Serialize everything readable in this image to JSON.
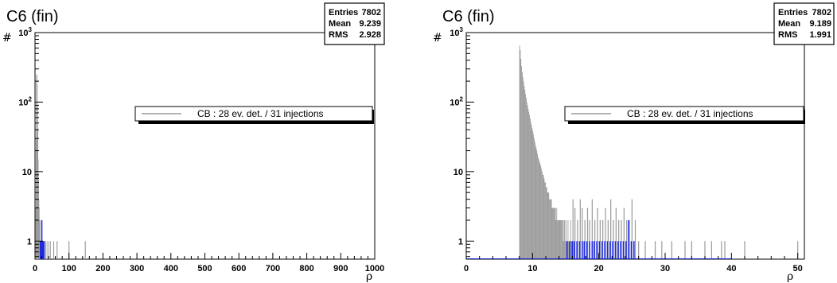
{
  "chart_data": [
    {
      "type": "histogram",
      "title": "C6 (fin)",
      "xlabel": "ρ",
      "ylabel": "#",
      "xlim": [
        0,
        1000
      ],
      "ylim": [
        0.55,
        1000
      ],
      "yscale": "log",
      "x_ticks": [
        0,
        100,
        200,
        300,
        400,
        500,
        600,
        700,
        800,
        900,
        1000
      ],
      "y_ticks": [
        1,
        10,
        100,
        1000
      ],
      "y_tick_labels": [
        "1",
        "10",
        "10^2",
        "10^3"
      ],
      "stats": [
        {
          "key": "Entries",
          "value": "7802"
        },
        {
          "key": "Mean",
          "value": "9.239"
        },
        {
          "key": "RMS",
          "value": "2.928"
        }
      ],
      "legend": "CB : 28 ev. det. / 31 injections",
      "colors": {
        "grey": "#9a9a9a",
        "blue": "#1f2be0"
      },
      "series_grey": {
        "x": [
          3,
          4,
          5,
          6,
          7,
          8,
          9,
          10,
          11,
          12,
          13,
          14,
          15,
          16,
          18,
          20,
          22,
          25,
          28,
          32,
          38,
          45,
          55,
          65,
          100,
          148
        ],
        "y": [
          3,
          30,
          250,
          180,
          90,
          40,
          15,
          8,
          4,
          3,
          2,
          2,
          1,
          1,
          1,
          1,
          1,
          1,
          1,
          1,
          1,
          1,
          1,
          1,
          1,
          1
        ]
      },
      "series_blue": {
        "x": [
          16,
          18,
          20,
          22,
          24,
          26
        ],
        "y": [
          1,
          1,
          2,
          1,
          1,
          1
        ]
      }
    },
    {
      "type": "histogram",
      "title": "C6 (fin)",
      "xlabel": "ρ",
      "ylabel": "#",
      "xlim": [
        0,
        51
      ],
      "ylim": [
        0.55,
        1000
      ],
      "yscale": "log",
      "x_ticks": [
        0,
        10,
        20,
        30,
        40,
        50
      ],
      "y_ticks": [
        1,
        10,
        100,
        1000
      ],
      "y_tick_labels": [
        "1",
        "10",
        "10^2",
        "10^3"
      ],
      "stats": [
        {
          "key": "Entries",
          "value": "7802"
        },
        {
          "key": "Mean",
          "value": "9.189"
        },
        {
          "key": "RMS",
          "value": "1.991"
        }
      ],
      "legend": "CB : 28 ev. det. / 31 injections",
      "colors": {
        "grey": "#9a9a9a",
        "blue": "#1f2be0"
      },
      "grey_bins": {
        "x_start": 8.0,
        "width": 0.1,
        "heights": [
          650,
          560,
          420,
          330,
          270,
          230,
          200,
          170,
          150,
          130,
          115,
          100,
          90,
          80,
          72,
          65,
          58,
          52,
          47,
          42,
          38,
          34,
          30,
          27,
          24,
          22,
          20,
          18,
          16,
          15,
          14,
          13,
          12,
          11,
          10,
          9,
          9,
          8,
          7,
          7,
          6,
          6,
          5,
          5,
          5,
          4,
          4,
          4,
          4,
          3,
          3,
          3,
          3,
          3,
          3,
          2,
          3,
          2,
          2,
          2,
          2,
          2,
          2,
          2,
          2,
          2,
          1,
          2,
          2,
          1,
          2,
          1,
          1,
          2,
          1,
          1,
          1,
          2,
          1,
          1
        ]
      },
      "series_grey": {
        "x": [
          16.1,
          16.4,
          16.8,
          17.2,
          17.5,
          17.9,
          18.3,
          18.6,
          19.0,
          19.4,
          19.8,
          20.2,
          20.6,
          21.0,
          21.4,
          21.8,
          22.2,
          22.6,
          23.0,
          23.4,
          23.8,
          24.2,
          24.6,
          25.0,
          25.5,
          26.0,
          27.0,
          28.5,
          29.5,
          31.0,
          33.0,
          34.0,
          36.0,
          37.0,
          38.5,
          39.0,
          42.0,
          50.0
        ],
        "y": [
          4,
          3,
          2,
          4,
          3,
          2,
          3,
          2,
          4,
          2,
          3,
          2,
          2,
          3,
          2,
          4,
          2,
          3,
          2,
          2,
          3,
          2,
          2,
          4,
          2,
          1,
          1,
          1,
          1,
          1,
          1,
          1,
          1,
          1,
          1,
          1,
          1,
          1
        ]
      },
      "series_blue": {
        "x": [
          15.2,
          15.6,
          16.0,
          16.3,
          16.7,
          17.1,
          17.5,
          17.8,
          18.2,
          18.6,
          19.0,
          19.3,
          19.7,
          20.1,
          20.5,
          20.9,
          21.3,
          21.7,
          22.1,
          22.5,
          22.9,
          23.3,
          23.7,
          24.1,
          24.5,
          24.9,
          25.3
        ],
        "y": [
          1,
          1,
          1,
          1,
          1,
          1,
          1,
          1,
          1,
          1,
          1,
          1,
          1,
          1,
          1,
          1,
          1,
          1,
          1,
          1,
          1,
          1,
          1,
          1,
          2,
          1,
          1
        ]
      }
    }
  ]
}
